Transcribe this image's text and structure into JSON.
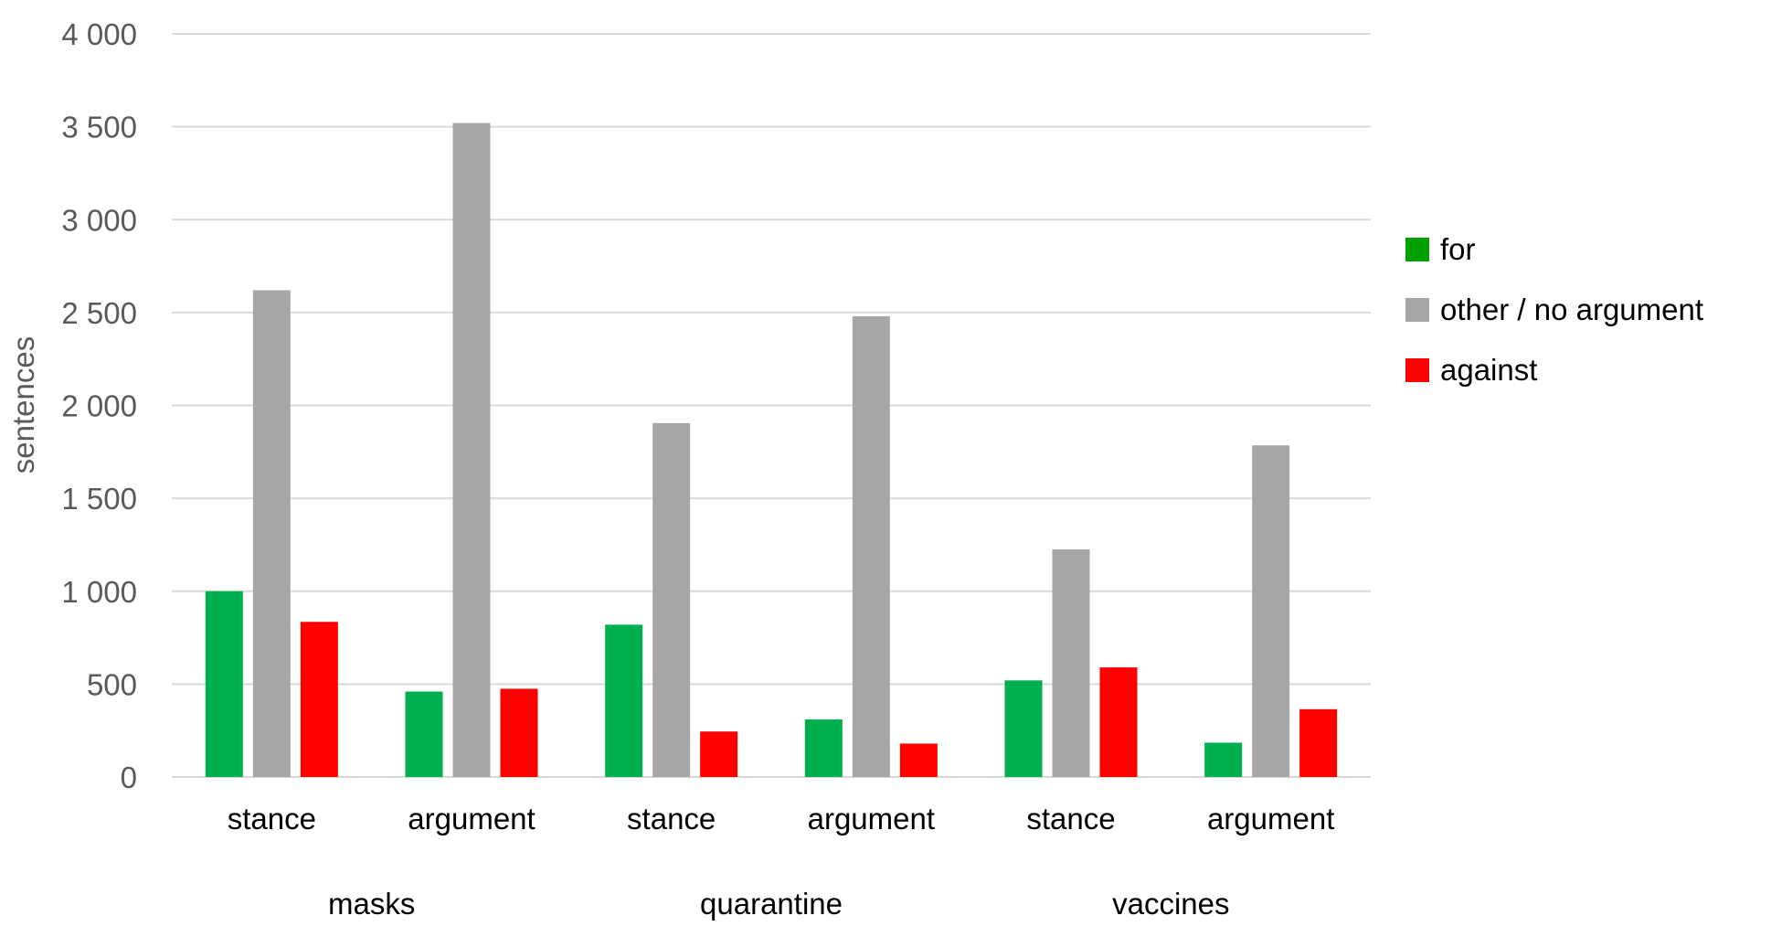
{
  "chart_data": {
    "type": "bar",
    "ylabel": "sentences",
    "ylim": [
      0,
      4000
    ],
    "yticks": [
      0,
      500,
      1000,
      1500,
      2000,
      2500,
      3000,
      3500,
      4000
    ],
    "ytick_labels": [
      "0",
      "500",
      "1 000",
      "1 500",
      "2 000",
      "2 500",
      "3 000",
      "3 500",
      "4 000"
    ],
    "grid": true,
    "legend_position": "right",
    "groups": [
      {
        "label": "masks",
        "categories": [
          "stance",
          "argument"
        ]
      },
      {
        "label": "quarantine",
        "categories": [
          "stance",
          "argument"
        ]
      },
      {
        "label": "vaccines",
        "categories": [
          "stance",
          "argument"
        ]
      }
    ],
    "categories": [
      "stance",
      "argument",
      "stance",
      "argument",
      "stance",
      "argument"
    ],
    "series": [
      {
        "name": "for",
        "color": "#00b050",
        "legend_color": "#00a000",
        "values": [
          1000,
          460,
          820,
          310,
          520,
          185
        ]
      },
      {
        "name": "other / no argument",
        "color": "#a6a6a6",
        "legend_color": "#a6a6a6",
        "values": [
          2620,
          3520,
          1905,
          2480,
          1225,
          1785
        ]
      },
      {
        "name": "against",
        "color": "#ff0000",
        "legend_color": "#ff0000",
        "values": [
          835,
          475,
          245,
          180,
          590,
          365
        ]
      }
    ]
  }
}
